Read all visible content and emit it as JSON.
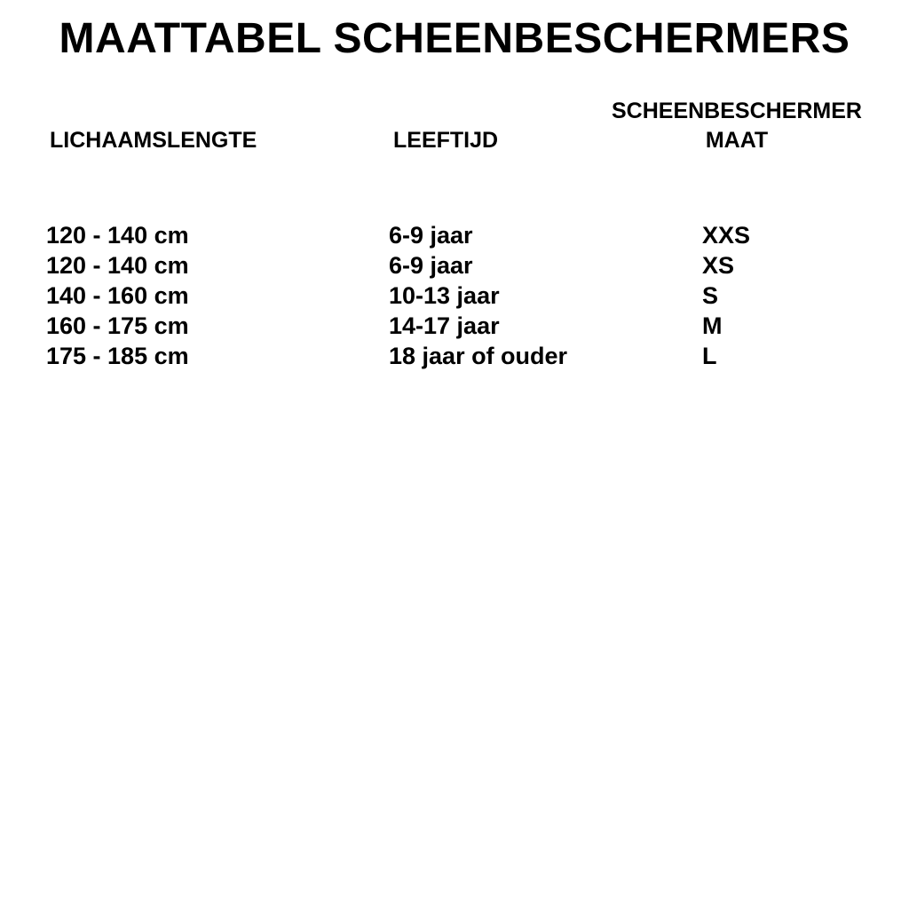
{
  "title": "MAATTABEL SCHEENBESCHERMERS",
  "table": {
    "headers": [
      [
        "LICHAAMSLENGTE"
      ],
      [
        "LEEFTIJD"
      ],
      [
        "SCHEENBESCHERMER",
        "MAAT"
      ]
    ],
    "rows": [
      [
        "120 - 140 cm",
        "6-9 jaar",
        "XXS"
      ],
      [
        "120 - 140 cm",
        "6-9 jaar",
        "XS"
      ],
      [
        "140 - 160 cm",
        "10-13 jaar",
        "S"
      ],
      [
        "160 - 175 cm",
        "14-17 jaar",
        "M"
      ],
      [
        "175 - 185 cm",
        "18 jaar of ouder",
        "L"
      ]
    ]
  }
}
